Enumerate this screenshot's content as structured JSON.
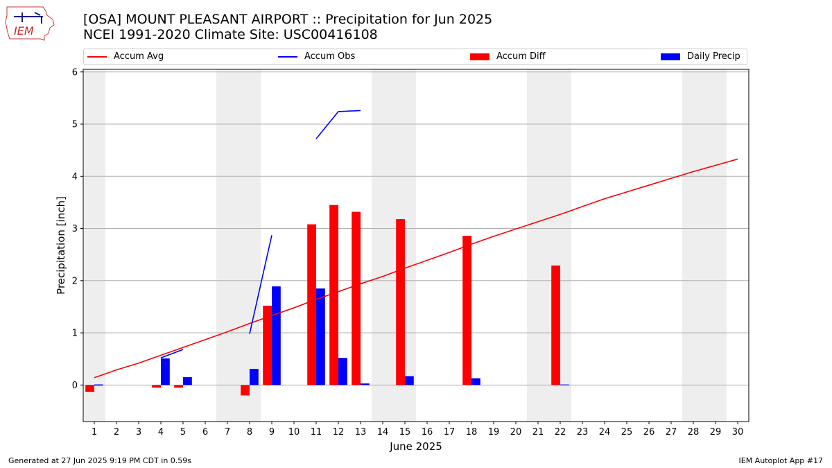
{
  "header": {
    "title": "[OSA] MOUNT PLEASANT AIRPORT :: Precipitation for Jun 2025",
    "subtitle": "NCEI 1991-2020 Climate Site: USC00416108",
    "logo_text": "IEM"
  },
  "legend": {
    "items": [
      {
        "label": "Accum Avg",
        "kind": "line",
        "color": "#ff0000"
      },
      {
        "label": "Accum Obs",
        "kind": "line",
        "color": "#0000ff"
      },
      {
        "label": "Accum Diff",
        "kind": "box",
        "color": "#ff0000"
      },
      {
        "label": "Daily Precip",
        "kind": "box",
        "color": "#0000ff"
      }
    ]
  },
  "footer": {
    "left": "Generated at 27 Jun 2025 9:19 PM CDT in 0.59s",
    "right": "IEM Autoplot App #17"
  },
  "chart_data": {
    "type": "bar",
    "xlabel": "June 2025",
    "ylabel": "Precipitation [inch]",
    "xlim": [
      0.5,
      30.5
    ],
    "ylim": [
      -0.7,
      6.05
    ],
    "x": [
      1,
      2,
      3,
      4,
      5,
      6,
      7,
      8,
      9,
      10,
      11,
      12,
      13,
      14,
      15,
      16,
      17,
      18,
      19,
      20,
      21,
      22,
      23,
      24,
      25,
      26,
      27,
      28,
      29,
      30
    ],
    "x_tick_labels": [
      "1",
      "2",
      "3",
      "4",
      "5",
      "6",
      "7",
      "8",
      "9",
      "10",
      "11",
      "12",
      "13",
      "14",
      "15",
      "16",
      "17",
      "18",
      "19",
      "20",
      "21",
      "22",
      "23",
      "24",
      "25",
      "26",
      "27",
      "28",
      "29",
      "30"
    ],
    "y_ticks": [
      0,
      1,
      2,
      3,
      4,
      5,
      6
    ],
    "grid": "horizontal",
    "weekend_shading": [
      [
        0.5,
        1.5
      ],
      [
        6.5,
        8.5
      ],
      [
        13.5,
        15.5
      ],
      [
        20.5,
        22.5
      ],
      [
        27.5,
        29.5
      ]
    ],
    "series": [
      {
        "name": "Accum Avg",
        "type": "line",
        "color": "#ff0000",
        "x": [
          1,
          2,
          3,
          4,
          5,
          6,
          7,
          8,
          9,
          10,
          11,
          12,
          13,
          14,
          15,
          16,
          17,
          18,
          19,
          20,
          21,
          22,
          23,
          24,
          25,
          26,
          27,
          28,
          29,
          30
        ],
        "values": [
          0.14,
          0.29,
          0.42,
          0.57,
          0.72,
          0.87,
          1.02,
          1.18,
          1.33,
          1.48,
          1.64,
          1.79,
          1.94,
          2.08,
          2.24,
          2.39,
          2.54,
          2.7,
          2.85,
          2.99,
          3.13,
          3.27,
          3.42,
          3.57,
          3.7,
          3.83,
          3.96,
          4.09,
          4.21,
          4.33
        ]
      },
      {
        "name": "Accum Obs",
        "type": "line",
        "color": "#0000ff",
        "segments": [
          {
            "x": [
              1
            ],
            "values": [
              0.0
            ]
          },
          {
            "x": [
              4,
              5
            ],
            "values": [
              0.52,
              0.68
            ]
          },
          {
            "x": [
              8,
              9
            ],
            "values": [
              0.98,
              2.87
            ]
          },
          {
            "x": [
              11,
              12,
              13
            ],
            "values": [
              4.72,
              5.24,
              5.26
            ]
          }
        ]
      },
      {
        "name": "Accum Diff",
        "type": "bar",
        "color": "#ff0000",
        "x": [
          1,
          4,
          5,
          8,
          9,
          11,
          12,
          13,
          15,
          18,
          22
        ],
        "values": [
          -0.13,
          -0.05,
          -0.05,
          -0.2,
          1.52,
          3.08,
          3.45,
          3.32,
          3.18,
          2.86,
          2.29
        ]
      },
      {
        "name": "Daily Precip",
        "type": "bar",
        "color": "#0000ff",
        "x": [
          1,
          4,
          5,
          8,
          9,
          11,
          12,
          13,
          15,
          18,
          22
        ],
        "values": [
          0.01,
          0.51,
          0.15,
          0.31,
          1.89,
          1.85,
          0.52,
          0.03,
          0.17,
          0.13,
          0.01
        ]
      }
    ]
  }
}
